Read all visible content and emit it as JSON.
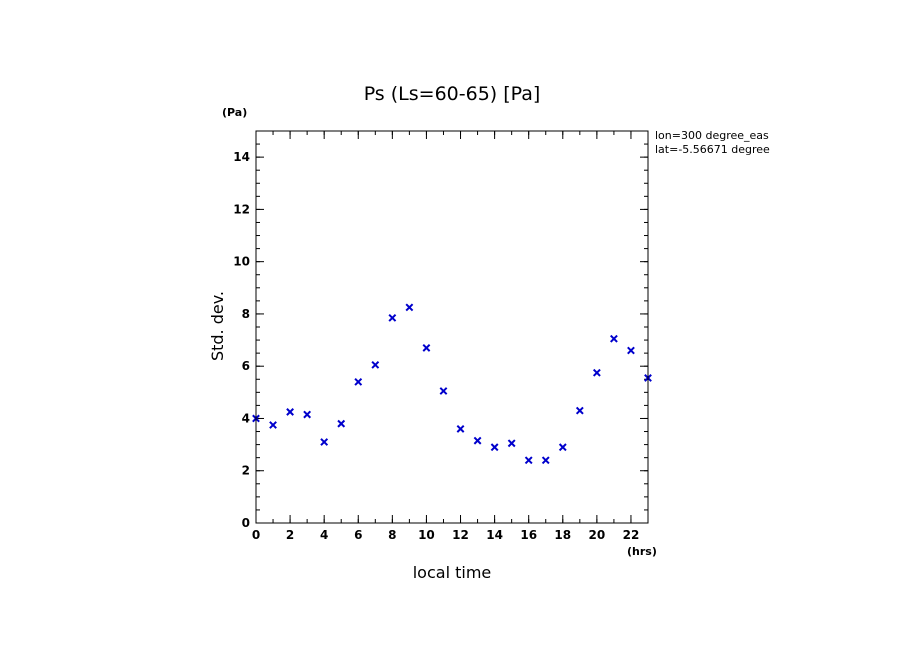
{
  "chart_data": {
    "type": "scatter",
    "title": "Ps (Ls=60-65) [Pa]",
    "xlabel": "local time",
    "ylabel": "Std. dev.",
    "x_unit": "(hrs)",
    "y_unit": "(Pa)",
    "annotations": [
      "lon=300 degree_eas",
      "lat=-5.56671 degree"
    ],
    "xlim": [
      0,
      23
    ],
    "ylim": [
      0,
      15
    ],
    "x_ticks": [
      0,
      2,
      4,
      6,
      8,
      10,
      12,
      14,
      16,
      18,
      20,
      22
    ],
    "y_ticks": [
      0,
      2,
      4,
      6,
      8,
      10,
      12,
      14
    ],
    "grid": false,
    "marker": "x",
    "marker_color": "#0000cc",
    "series": [
      {
        "x": [
          0,
          1,
          2,
          3,
          4,
          5,
          6,
          7,
          8,
          9,
          10,
          11,
          12,
          13,
          14,
          15,
          16,
          17,
          18,
          19,
          20,
          21,
          22,
          23
        ],
        "values": [
          4.0,
          3.75,
          4.25,
          4.15,
          3.1,
          3.8,
          5.4,
          6.05,
          7.85,
          8.25,
          6.7,
          5.05,
          3.6,
          3.15,
          2.9,
          3.05,
          2.4,
          2.4,
          2.9,
          4.3,
          5.75,
          7.05,
          6.6,
          5.55
        ]
      }
    ]
  }
}
